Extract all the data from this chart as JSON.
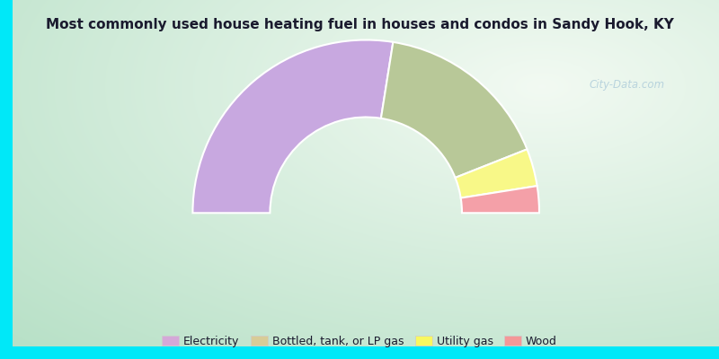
{
  "title": "Most commonly used house heating fuel in houses and condos in Sandy Hook, KY",
  "categories": [
    "Electricity",
    "Bottled, tank, or LP gas",
    "Utility gas",
    "Wood"
  ],
  "values": [
    55,
    33,
    7,
    5
  ],
  "colors": [
    "#c8a8e0",
    "#b8c898",
    "#f8f888",
    "#f4a0a8"
  ],
  "legend_colors": [
    "#d4a8d8",
    "#d8cc98",
    "#f8f860",
    "#f49898"
  ],
  "figsize": [
    8.0,
    4.0
  ],
  "dpi": 100,
  "outer_r": 1.3,
  "inner_r": 0.72,
  "border_color": "#00e8f8",
  "border_width": 0.018,
  "watermark": "City-Data.com",
  "bg_center": "#ffffff",
  "bg_edge_green": "#b8ddb8",
  "bg_edge_cyan": "#a8e8d8"
}
